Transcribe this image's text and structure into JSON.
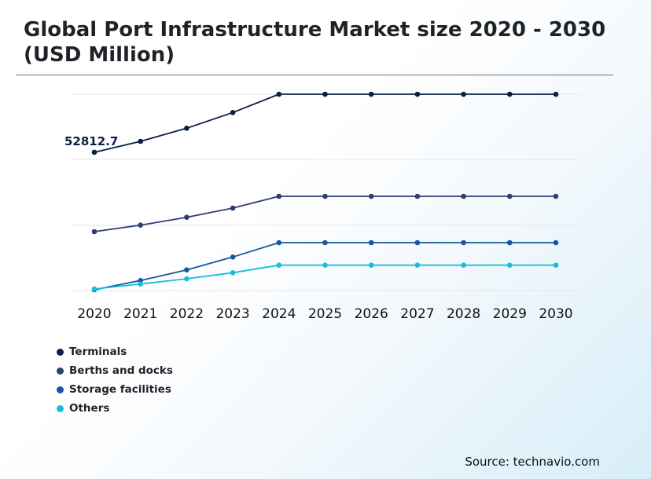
{
  "title": "Global Port Infrastructure Market size 2020 - 2030 (USD Million)",
  "source": "Source: technavio.com",
  "chart_data": {
    "type": "line",
    "title": "Global Port Infrastructure Market size 2020 - 2030 (USD Million)",
    "xlabel": "",
    "ylabel": "",
    "grid": true,
    "legend_position": "bottom-left",
    "categories": [
      "2020",
      "2021",
      "2022",
      "2023",
      "2024",
      "2025",
      "2026",
      "2027",
      "2028",
      "2029",
      "2030"
    ],
    "ylim": [
      0,
      75000
    ],
    "series": [
      {
        "name": "Terminals",
        "color": "#0b1f45",
        "values": [
          52812.7,
          57000,
          62000,
          68000,
          75000,
          75000,
          75000,
          75000,
          75000,
          75000,
          75000
        ]
      },
      {
        "name": "Berths and docks",
        "color": "#2d3f6e",
        "values": [
          22500,
          25000,
          28000,
          31500,
          36000,
          36000,
          36000,
          36000,
          36000,
          36000,
          36000
        ]
      },
      {
        "name": "Storage facilities",
        "color": "#1558a0",
        "values": [
          300,
          3800,
          7900,
          12800,
          18300,
          18300,
          18300,
          18300,
          18300,
          18300,
          18300
        ]
      },
      {
        "name": "Others",
        "color": "#13bfdc",
        "values": [
          600,
          2500,
          4500,
          6800,
          9700,
          9700,
          9700,
          9700,
          9700,
          9700,
          9700
        ]
      }
    ],
    "annotations": [
      {
        "series": "Terminals",
        "category": "2020",
        "text": "52812.7"
      }
    ]
  }
}
